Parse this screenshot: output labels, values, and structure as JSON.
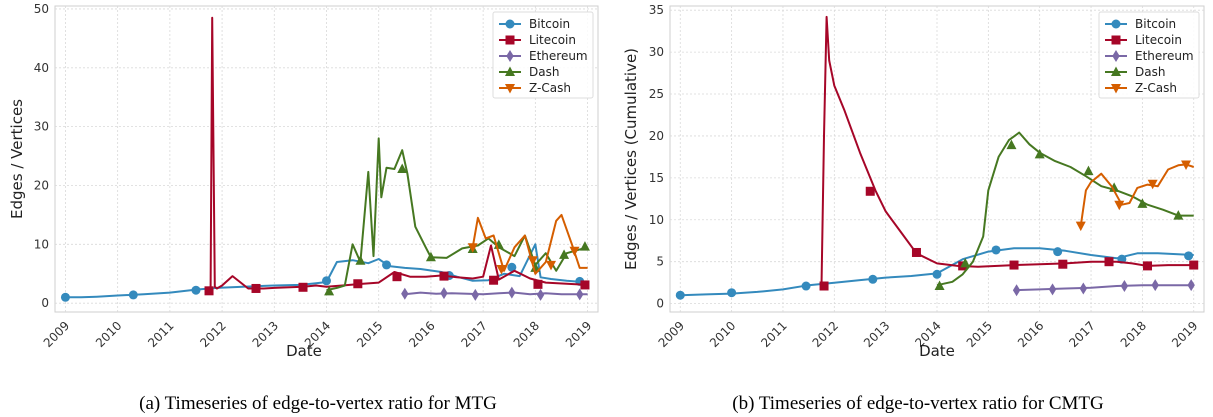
{
  "colors": {
    "Bitcoin": "#348ABD",
    "Litecoin": "#A60628",
    "Ethereum": "#7A68A6",
    "Dash": "#467821",
    "Z-Cash": "#D55E00"
  },
  "markers": {
    "Bitcoin": "circle",
    "Litecoin": "square",
    "Ethereum": "diamond",
    "Dash": "triangle-up",
    "Z-Cash": "triangle-down"
  },
  "chart_data": [
    {
      "type": "line",
      "caption": "(a) Timeseries of edge-to-vertex ratio for MTG",
      "xlabel": "Date",
      "ylabel": "Edges / Vertices",
      "xlim": [
        2008.8,
        2019.2
      ],
      "ylim": [
        -1.5,
        50.5
      ],
      "xticks": [
        "2009",
        "2010",
        "2011",
        "2012",
        "2013",
        "2014",
        "2015",
        "2016",
        "2017",
        "2018",
        "2019"
      ],
      "yticks": [
        0,
        10,
        20,
        30,
        40,
        50
      ],
      "grid": true,
      "legend": [
        "Bitcoin",
        "Litecoin",
        "Ethereum",
        "Dash",
        "Z-Cash"
      ],
      "legend_position": "top-right",
      "series": [
        {
          "name": "Bitcoin",
          "x": [
            2009.0,
            2009.3,
            2009.6,
            2010.0,
            2010.5,
            2011.0,
            2011.5,
            2011.9,
            2012.4,
            2013.0,
            2013.5,
            2013.8,
            2014.0,
            2014.2,
            2014.5,
            2014.8,
            2015.0,
            2015.2,
            2015.5,
            2015.8,
            2016.2,
            2016.5,
            2016.8,
            2017.1,
            2017.4,
            2017.7,
            2018.0,
            2018.1,
            2018.3,
            2018.6,
            2018.9,
            2019.0
          ],
          "y": [
            1.0,
            1.0,
            1.1,
            1.3,
            1.5,
            1.8,
            2.3,
            2.6,
            2.8,
            3.0,
            3.1,
            3.4,
            3.6,
            7.0,
            7.3,
            6.8,
            7.5,
            6.3,
            6.0,
            5.8,
            5.3,
            4.5,
            3.8,
            3.9,
            5.0,
            4.6,
            10.0,
            4.4,
            4.1,
            3.8,
            3.6,
            3.4
          ],
          "markers": [
            [
              2009.0,
              1.0
            ],
            [
              2010.3,
              1.4
            ],
            [
              2011.5,
              2.2
            ],
            [
              2014.0,
              3.8
            ],
            [
              2015.15,
              6.5
            ],
            [
              2016.35,
              4.7
            ],
            [
              2017.55,
              6.1
            ],
            [
              2018.85,
              3.7
            ]
          ]
        },
        {
          "name": "Litecoin",
          "x": [
            2011.75,
            2011.78,
            2011.81,
            2011.86,
            2011.9,
            2012.0,
            2012.2,
            2012.5,
            2012.8,
            2013.0,
            2013.3,
            2013.55,
            2013.8,
            2014.0,
            2014.3,
            2014.7,
            2015.0,
            2015.3,
            2015.6,
            2015.9,
            2016.2,
            2016.5,
            2016.8,
            2017.0,
            2017.15,
            2017.3,
            2017.6,
            2017.9,
            2018.2,
            2018.6,
            2019.0
          ],
          "y": [
            2.3,
            2.5,
            48.5,
            2.8,
            2.5,
            3.0,
            4.6,
            2.5,
            2.5,
            2.6,
            2.7,
            2.8,
            3.0,
            2.8,
            3.0,
            3.3,
            3.5,
            5.3,
            4.5,
            4.5,
            4.7,
            4.4,
            4.2,
            4.5,
            9.8,
            4.0,
            5.5,
            4.2,
            3.5,
            3.3,
            3.1
          ],
          "markers": [
            [
              2011.75,
              2.1
            ],
            [
              2012.65,
              2.5
            ],
            [
              2013.55,
              2.7
            ],
            [
              2014.6,
              3.3
            ],
            [
              2015.35,
              4.5
            ],
            [
              2016.25,
              4.6
            ],
            [
              2017.2,
              3.9
            ],
            [
              2018.05,
              3.2
            ],
            [
              2018.95,
              3.1
            ]
          ]
        },
        {
          "name": "Ethereum",
          "x": [
            2015.5,
            2015.8,
            2016.1,
            2016.4,
            2016.7,
            2017.0,
            2017.3,
            2017.6,
            2017.9,
            2018.2,
            2018.5,
            2018.8,
            2019.0
          ],
          "y": [
            1.5,
            1.8,
            1.6,
            1.7,
            1.6,
            1.5,
            1.7,
            1.8,
            1.5,
            1.7,
            1.5,
            1.5,
            1.5
          ],
          "markers": [
            [
              2015.5,
              1.6
            ],
            [
              2016.25,
              1.7
            ],
            [
              2016.85,
              1.4
            ],
            [
              2017.55,
              1.8
            ],
            [
              2018.1,
              1.4
            ],
            [
              2018.85,
              1.5
            ]
          ]
        },
        {
          "name": "Dash",
          "x": [
            2014.0,
            2014.2,
            2014.35,
            2014.5,
            2014.65,
            2014.8,
            2014.9,
            2015.0,
            2015.05,
            2015.15,
            2015.3,
            2015.45,
            2015.55,
            2015.7,
            2015.9,
            2016.0,
            2016.3,
            2016.6,
            2016.9,
            2017.1,
            2017.3,
            2017.6,
            2017.8,
            2018.0,
            2018.2,
            2018.4,
            2018.6,
            2018.8,
            2019.0
          ],
          "y": [
            2.2,
            2.6,
            3.0,
            10.0,
            7.0,
            22.3,
            8.0,
            28.0,
            18.0,
            23.0,
            22.8,
            26.0,
            22.0,
            13.0,
            9.5,
            7.8,
            7.7,
            9.3,
            9.8,
            11.0,
            9.5,
            8.0,
            11.5,
            6.5,
            8.5,
            5.5,
            8.5,
            9.0,
            9.5
          ],
          "markers": [
            [
              2014.05,
              2.0
            ],
            [
              2014.65,
              7.2
            ],
            [
              2015.45,
              22.8
            ],
            [
              2016.0,
              7.8
            ],
            [
              2016.8,
              9.2
            ],
            [
              2017.3,
              9.9
            ],
            [
              2018.0,
              6.0
            ],
            [
              2018.55,
              8.2
            ],
            [
              2018.95,
              9.6
            ]
          ]
        },
        {
          "name": "Z-Cash",
          "x": [
            2016.8,
            2016.9,
            2017.05,
            2017.2,
            2017.4,
            2017.6,
            2017.8,
            2018.0,
            2018.2,
            2018.4,
            2018.5,
            2018.7,
            2018.85,
            2019.0
          ],
          "y": [
            9.5,
            14.5,
            11.0,
            11.5,
            5.5,
            9.5,
            11.5,
            5.0,
            7.0,
            14.0,
            15.0,
            10.0,
            6.0,
            6.0
          ],
          "markers": [
            [
              2016.8,
              9.5
            ],
            [
              2017.35,
              5.8
            ],
            [
              2017.95,
              7.3
            ],
            [
              2018.3,
              6.5
            ],
            [
              2018.75,
              8.9
            ]
          ]
        }
      ]
    },
    {
      "type": "line",
      "caption": "(b) Timeseries of edge-to-vertex ratio for CMTG",
      "xlabel": "Date",
      "ylabel": "Edges / Vertices (Cumulative)",
      "xlim": [
        2008.8,
        2019.2
      ],
      "ylim": [
        -1,
        35.5
      ],
      "xticks": [
        "2009",
        "2010",
        "2011",
        "2012",
        "2013",
        "2014",
        "2015",
        "2016",
        "2017",
        "2018",
        "2019"
      ],
      "yticks": [
        0,
        5,
        10,
        15,
        20,
        25,
        30,
        35
      ],
      "grid": true,
      "legend": [
        "Bitcoin",
        "Litecoin",
        "Ethereum",
        "Dash",
        "Z-Cash"
      ],
      "legend_position": "top-right",
      "series": [
        {
          "name": "Bitcoin",
          "x": [
            2009.0,
            2009.5,
            2010.0,
            2010.5,
            2011.0,
            2011.5,
            2012.0,
            2012.5,
            2013.0,
            2013.5,
            2014.0,
            2014.5,
            2015.0,
            2015.5,
            2016.0,
            2016.5,
            2017.0,
            2017.5,
            2017.9,
            2018.3,
            2018.7,
            2019.0
          ],
          "y": [
            1.0,
            1.1,
            1.2,
            1.4,
            1.7,
            2.2,
            2.5,
            2.8,
            3.1,
            3.3,
            3.6,
            5.3,
            6.2,
            6.6,
            6.6,
            6.3,
            5.8,
            5.4,
            6.0,
            6.0,
            5.9,
            5.8
          ],
          "markers": [
            [
              2009.0,
              1.0
            ],
            [
              2010.0,
              1.3
            ],
            [
              2011.45,
              2.1
            ],
            [
              2012.75,
              2.9
            ],
            [
              2014.0,
              3.5
            ],
            [
              2015.15,
              6.4
            ],
            [
              2016.35,
              6.2
            ],
            [
              2017.6,
              5.3
            ],
            [
              2018.9,
              5.7
            ]
          ]
        },
        {
          "name": "Litecoin",
          "x": [
            2011.75,
            2011.8,
            2011.85,
            2011.9,
            2012.0,
            2012.2,
            2012.5,
            2012.8,
            2013.0,
            2013.3,
            2013.6,
            2014.0,
            2014.4,
            2014.8,
            2015.5,
            2016.0,
            2016.5,
            2017.0,
            2017.5,
            2017.8,
            2018.1,
            2018.5,
            2019.0
          ],
          "y": [
            2.1,
            20.0,
            34.2,
            29.0,
            26.0,
            23.0,
            18.0,
            13.5,
            11.0,
            8.5,
            6.0,
            4.8,
            4.5,
            4.4,
            4.6,
            4.7,
            4.8,
            5.0,
            5.0,
            4.8,
            4.5,
            4.6,
            4.6
          ],
          "markers": [
            [
              2011.8,
              2.1
            ],
            [
              2012.7,
              13.4
            ],
            [
              2013.6,
              6.1
            ],
            [
              2014.5,
              4.5
            ],
            [
              2015.5,
              4.6
            ],
            [
              2016.45,
              4.7
            ],
            [
              2017.35,
              5.0
            ],
            [
              2018.1,
              4.5
            ],
            [
              2019.0,
              4.6
            ]
          ]
        },
        {
          "name": "Ethereum",
          "x": [
            2015.5,
            2016.0,
            2016.5,
            2017.0,
            2017.5,
            2018.0,
            2018.5,
            2019.0
          ],
          "y": [
            1.6,
            1.7,
            1.8,
            1.9,
            2.1,
            2.2,
            2.2,
            2.2
          ],
          "markers": [
            [
              2015.55,
              1.6
            ],
            [
              2016.25,
              1.7
            ],
            [
              2016.85,
              1.8
            ],
            [
              2017.65,
              2.1
            ],
            [
              2018.25,
              2.2
            ],
            [
              2018.95,
              2.2
            ]
          ]
        },
        {
          "name": "Dash",
          "x": [
            2014.0,
            2014.3,
            2014.5,
            2014.7,
            2014.9,
            2015.0,
            2015.2,
            2015.4,
            2015.6,
            2015.8,
            2016.0,
            2016.3,
            2016.6,
            2016.9,
            2017.2,
            2017.5,
            2017.8,
            2018.1,
            2018.4,
            2018.7,
            2019.0
          ],
          "y": [
            2.2,
            2.6,
            3.5,
            5.0,
            8.0,
            13.5,
            17.5,
            19.5,
            20.4,
            19.0,
            18.0,
            17.0,
            16.3,
            15.2,
            14.0,
            13.5,
            12.8,
            11.8,
            11.2,
            10.5,
            10.5
          ],
          "markers": [
            [
              2014.05,
              2.1
            ],
            [
              2014.55,
              4.8
            ],
            [
              2015.45,
              18.9
            ],
            [
              2016.0,
              17.8
            ],
            [
              2016.95,
              15.8
            ],
            [
              2017.45,
              13.8
            ],
            [
              2018.0,
              11.9
            ],
            [
              2018.7,
              10.5
            ]
          ]
        },
        {
          "name": "Z-Cash",
          "x": [
            2016.8,
            2016.9,
            2017.0,
            2017.2,
            2017.4,
            2017.6,
            2017.75,
            2017.9,
            2018.1,
            2018.3,
            2018.5,
            2018.7,
            2018.85,
            2019.0
          ],
          "y": [
            9.3,
            13.5,
            14.5,
            15.5,
            14.0,
            11.8,
            12.0,
            13.8,
            14.2,
            14.0,
            16.0,
            16.5,
            16.6,
            16.3
          ],
          "markers": [
            [
              2016.8,
              9.3
            ],
            [
              2017.55,
              11.8
            ],
            [
              2018.2,
              14.3
            ],
            [
              2018.85,
              16.6
            ]
          ]
        }
      ]
    }
  ]
}
